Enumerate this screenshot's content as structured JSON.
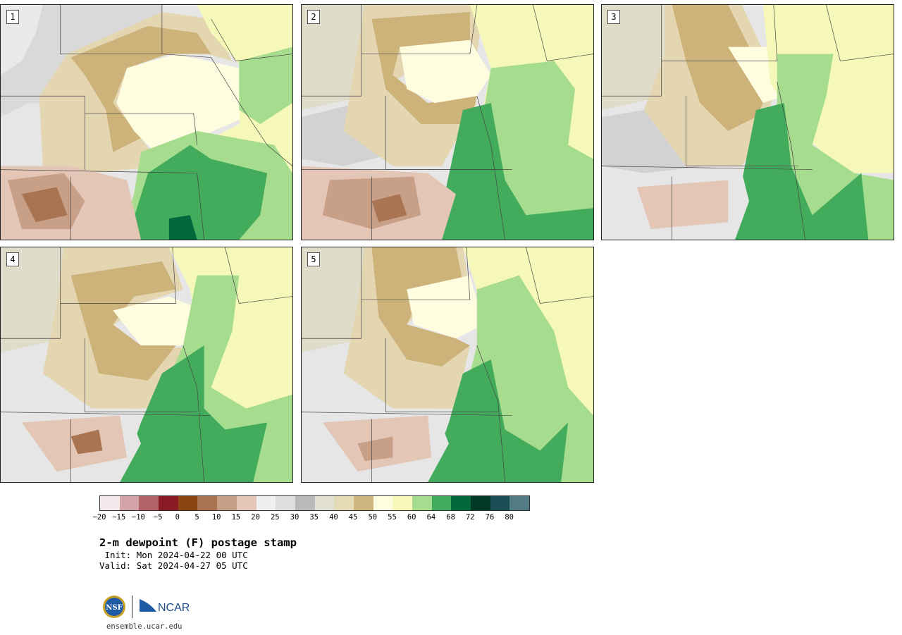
{
  "panels": [
    {
      "label": "1"
    },
    {
      "label": "2"
    },
    {
      "label": "3"
    },
    {
      "label": "4"
    },
    {
      "label": "5"
    }
  ],
  "colorbar": {
    "colors": [
      "#f3e8ea",
      "#d3a3aa",
      "#b4626a",
      "#8a1a24",
      "#8b4513",
      "#a87452",
      "#c89f87",
      "#e3c6b5",
      "#efefef",
      "#dedede",
      "#b9b9b9",
      "#e0dfd2",
      "#e6dbb7",
      "#cfb57e",
      "#fffde0",
      "#f6f9b9",
      "#a6dc8d",
      "#43ac5c",
      "#00683a",
      "#013a24",
      "#1a4f56",
      "#517c83"
    ],
    "tick_labels": [
      "−20",
      "−15",
      "−10",
      "−5",
      "0",
      "5",
      "10",
      "15",
      "20",
      "25",
      "30",
      "35",
      "40",
      "45",
      "50",
      "55",
      "60",
      "64",
      "68",
      "72",
      "76",
      "80"
    ]
  },
  "title": "2-m dewpoint (F) postage stamp",
  "init_text": " Init: Mon 2024-04-22 00 UTC",
  "valid_text": "Valid: Sat 2024-04-27 05 UTC",
  "logos": {
    "nsf_text": "NSF",
    "ncar_text": "NCAR"
  },
  "website": "ensemble.ucar.edu"
}
